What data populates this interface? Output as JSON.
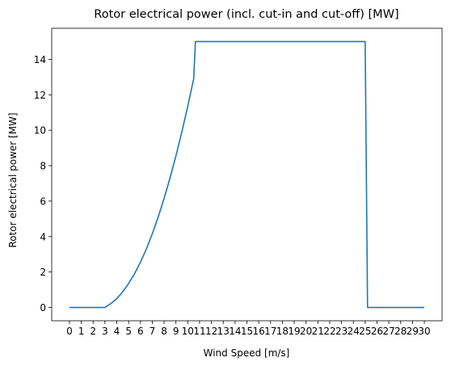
{
  "chart_data": {
    "type": "line",
    "title": "Rotor electrical power (incl. cut-in and cut-off) [MW]",
    "xlabel": "Wind Speed [m/s]",
    "ylabel": "Rotor electrical power [MW]",
    "xlim": [
      -1.5,
      31.5
    ],
    "ylim": [
      -0.75,
      15.75
    ],
    "x_ticks": [
      0,
      1,
      2,
      3,
      4,
      5,
      6,
      7,
      8,
      9,
      10,
      11,
      12,
      13,
      14,
      15,
      16,
      17,
      18,
      19,
      20,
      21,
      22,
      23,
      24,
      25,
      26,
      27,
      28,
      29,
      30
    ],
    "y_ticks": [
      0,
      2,
      4,
      6,
      8,
      10,
      12,
      14
    ],
    "grid": false,
    "colors": {
      "series": "#1f77b4"
    },
    "series": [
      {
        "x": [
          0,
          1,
          2,
          3,
          3.5,
          4,
          4.5,
          5,
          5.5,
          6,
          6.5,
          7,
          7.5,
          8,
          8.5,
          9,
          9.5,
          10,
          10.5,
          10.65,
          11,
          12,
          13,
          14,
          15,
          16,
          17,
          18,
          19,
          20,
          21,
          22,
          23,
          24,
          25,
          25.2,
          26,
          27,
          28,
          29,
          30
        ],
        "values": [
          0,
          0,
          0,
          0,
          0.22,
          0.5,
          0.88,
          1.35,
          1.9,
          2.55,
          3.3,
          4.15,
          5.1,
          6.15,
          7.3,
          8.55,
          9.9,
          11.35,
          12.9,
          15,
          15,
          15,
          15,
          15,
          15,
          15,
          15,
          15,
          15,
          15,
          15,
          15,
          15,
          15,
          15,
          0,
          0,
          0,
          0,
          0,
          0
        ]
      }
    ]
  }
}
